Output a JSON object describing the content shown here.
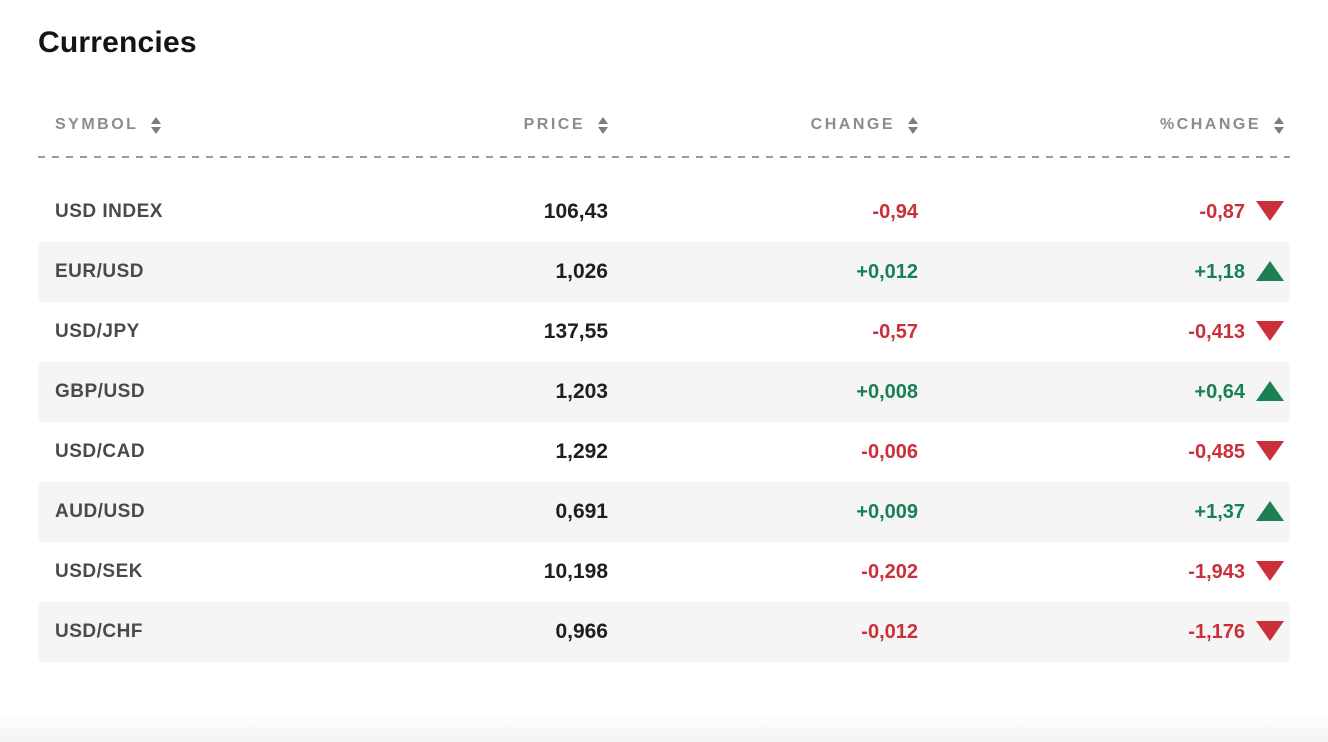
{
  "title": "Currencies",
  "table": {
    "columns": [
      {
        "key": "symbol",
        "label": "SYMBOL"
      },
      {
        "key": "price",
        "label": "PRICE"
      },
      {
        "key": "change",
        "label": "CHANGE"
      },
      {
        "key": "pct_change",
        "label": "%CHANGE"
      }
    ],
    "rows": [
      {
        "symbol": "USD INDEX",
        "price": "106,43",
        "change": "-0,94",
        "pct_change": "-0,87",
        "direction": "down"
      },
      {
        "symbol": "EUR/USD",
        "price": "1,026",
        "change": "+0,012",
        "pct_change": "+1,18",
        "direction": "up"
      },
      {
        "symbol": "USD/JPY",
        "price": "137,55",
        "change": "-0,57",
        "pct_change": "-0,413",
        "direction": "down"
      },
      {
        "symbol": "GBP/USD",
        "price": "1,203",
        "change": "+0,008",
        "pct_change": "+0,64",
        "direction": "up"
      },
      {
        "symbol": "USD/CAD",
        "price": "1,292",
        "change": "-0,006",
        "pct_change": "-0,485",
        "direction": "down"
      },
      {
        "symbol": "AUD/USD",
        "price": "0,691",
        "change": "+0,009",
        "pct_change": "+1,37",
        "direction": "up"
      },
      {
        "symbol": "USD/SEK",
        "price": "10,198",
        "change": "-0,202",
        "pct_change": "-1,943",
        "direction": "down"
      },
      {
        "symbol": "USD/CHF",
        "price": "0,966",
        "change": "-0,012",
        "pct_change": "-1,176",
        "direction": "down"
      }
    ]
  },
  "colors": {
    "positive": "#1a8054",
    "negative": "#ca2f3a",
    "row_stripe": "#f5f5f6",
    "header_text": "#8c8c8c",
    "symbol_text": "#4a4a4a",
    "price_text": "#1e1e1e"
  },
  "icons": {
    "sort": "sort-arrows-icon",
    "up": "up-triangle-icon",
    "down": "down-triangle-icon"
  }
}
